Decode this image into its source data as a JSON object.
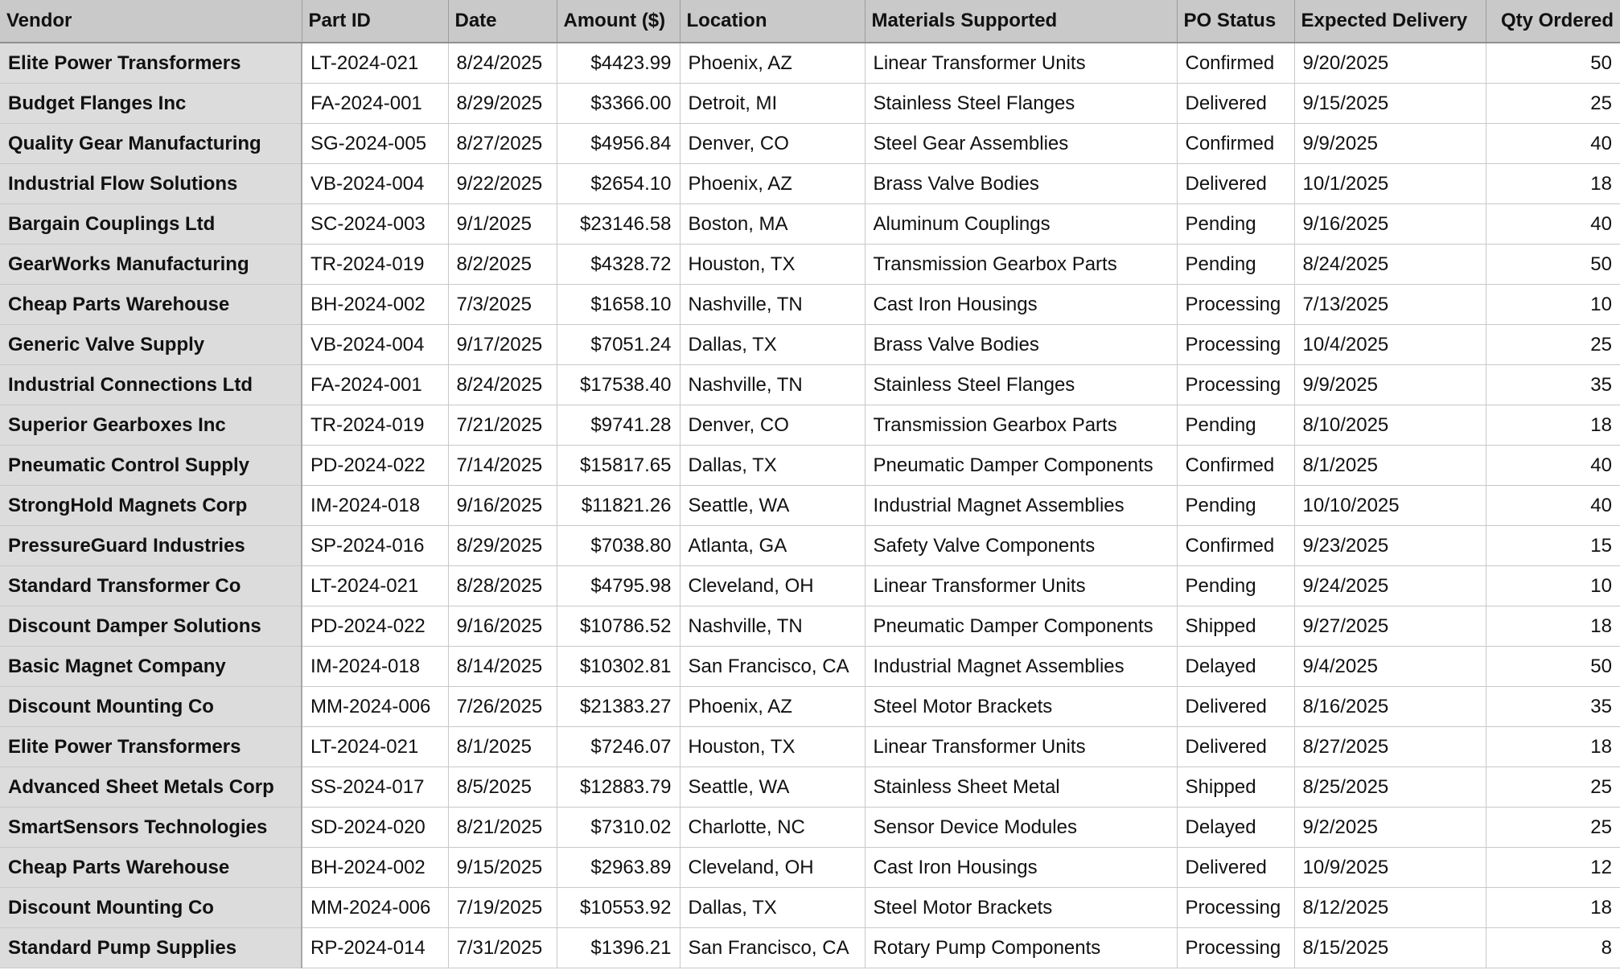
{
  "headers": {
    "vendor": "Vendor",
    "part_id": "Part ID",
    "date": "Date",
    "amount": "Amount ($)",
    "location": "Location",
    "materials": "Materials Supported",
    "po_status": "PO Status",
    "expected_delivery": "Expected Delivery",
    "qty_ordered": "Qty Ordered"
  },
  "rows": [
    {
      "vendor": "Elite Power Transformers",
      "part_id": "LT-2024-021",
      "date": "8/24/2025",
      "amount": "$4423.99",
      "location": "Phoenix, AZ",
      "materials": "Linear Transformer Units",
      "po_status": "Confirmed",
      "expected_delivery": "9/20/2025",
      "qty": "50"
    },
    {
      "vendor": "Budget Flanges Inc",
      "part_id": "FA-2024-001",
      "date": "8/29/2025",
      "amount": "$3366.00",
      "location": "Detroit, MI",
      "materials": "Stainless Steel Flanges",
      "po_status": "Delivered",
      "expected_delivery": "9/15/2025",
      "qty": "25"
    },
    {
      "vendor": "Quality Gear Manufacturing",
      "part_id": "SG-2024-005",
      "date": "8/27/2025",
      "amount": "$4956.84",
      "location": "Denver, CO",
      "materials": "Steel Gear Assemblies",
      "po_status": "Confirmed",
      "expected_delivery": "9/9/2025",
      "qty": "40"
    },
    {
      "vendor": "Industrial Flow Solutions",
      "part_id": "VB-2024-004",
      "date": "9/22/2025",
      "amount": "$2654.10",
      "location": "Phoenix, AZ",
      "materials": "Brass Valve Bodies",
      "po_status": "Delivered",
      "expected_delivery": "10/1/2025",
      "qty": "18"
    },
    {
      "vendor": "Bargain Couplings Ltd",
      "part_id": "SC-2024-003",
      "date": "9/1/2025",
      "amount": "$23146.58",
      "location": "Boston, MA",
      "materials": "Aluminum Couplings",
      "po_status": "Pending",
      "expected_delivery": "9/16/2025",
      "qty": "40"
    },
    {
      "vendor": "GearWorks Manufacturing",
      "part_id": "TR-2024-019",
      "date": "8/2/2025",
      "amount": "$4328.72",
      "location": "Houston, TX",
      "materials": "Transmission Gearbox Parts",
      "po_status": "Pending",
      "expected_delivery": "8/24/2025",
      "qty": "50"
    },
    {
      "vendor": "Cheap Parts Warehouse",
      "part_id": "BH-2024-002",
      "date": "7/3/2025",
      "amount": "$1658.10",
      "location": "Nashville, TN",
      "materials": "Cast Iron Housings",
      "po_status": "Processing",
      "expected_delivery": "7/13/2025",
      "qty": "10"
    },
    {
      "vendor": "Generic Valve Supply",
      "part_id": "VB-2024-004",
      "date": "9/17/2025",
      "amount": "$7051.24",
      "location": "Dallas, TX",
      "materials": "Brass Valve Bodies",
      "po_status": "Processing",
      "expected_delivery": "10/4/2025",
      "qty": "25"
    },
    {
      "vendor": "Industrial Connections Ltd",
      "part_id": "FA-2024-001",
      "date": "8/24/2025",
      "amount": "$17538.40",
      "location": "Nashville, TN",
      "materials": "Stainless Steel Flanges",
      "po_status": "Processing",
      "expected_delivery": "9/9/2025",
      "qty": "35"
    },
    {
      "vendor": "Superior Gearboxes Inc",
      "part_id": "TR-2024-019",
      "date": "7/21/2025",
      "amount": "$9741.28",
      "location": "Denver, CO",
      "materials": "Transmission Gearbox Parts",
      "po_status": "Pending",
      "expected_delivery": "8/10/2025",
      "qty": "18"
    },
    {
      "vendor": "Pneumatic Control Supply",
      "part_id": "PD-2024-022",
      "date": "7/14/2025",
      "amount": "$15817.65",
      "location": "Dallas, TX",
      "materials": "Pneumatic Damper Components",
      "po_status": "Confirmed",
      "expected_delivery": "8/1/2025",
      "qty": "40"
    },
    {
      "vendor": "StrongHold Magnets Corp",
      "part_id": "IM-2024-018",
      "date": "9/16/2025",
      "amount": "$11821.26",
      "location": "Seattle, WA",
      "materials": "Industrial Magnet Assemblies",
      "po_status": "Pending",
      "expected_delivery": "10/10/2025",
      "qty": "40"
    },
    {
      "vendor": "PressureGuard Industries",
      "part_id": "SP-2024-016",
      "date": "8/29/2025",
      "amount": "$7038.80",
      "location": "Atlanta, GA",
      "materials": "Safety Valve Components",
      "po_status": "Confirmed",
      "expected_delivery": "9/23/2025",
      "qty": "15"
    },
    {
      "vendor": "Standard Transformer Co",
      "part_id": "LT-2024-021",
      "date": "8/28/2025",
      "amount": "$4795.98",
      "location": "Cleveland, OH",
      "materials": "Linear Transformer Units",
      "po_status": "Pending",
      "expected_delivery": "9/24/2025",
      "qty": "10"
    },
    {
      "vendor": "Discount Damper Solutions",
      "part_id": "PD-2024-022",
      "date": "9/16/2025",
      "amount": "$10786.52",
      "location": "Nashville, TN",
      "materials": "Pneumatic Damper Components",
      "po_status": "Shipped",
      "expected_delivery": "9/27/2025",
      "qty": "18"
    },
    {
      "vendor": "Basic Magnet Company",
      "part_id": "IM-2024-018",
      "date": "8/14/2025",
      "amount": "$10302.81",
      "location": "San Francisco, CA",
      "materials": "Industrial Magnet Assemblies",
      "po_status": "Delayed",
      "expected_delivery": "9/4/2025",
      "qty": "50"
    },
    {
      "vendor": "Discount Mounting Co",
      "part_id": "MM-2024-006",
      "date": "7/26/2025",
      "amount": "$21383.27",
      "location": "Phoenix, AZ",
      "materials": "Steel Motor Brackets",
      "po_status": "Delivered",
      "expected_delivery": "8/16/2025",
      "qty": "35"
    },
    {
      "vendor": "Elite Power Transformers",
      "part_id": "LT-2024-021",
      "date": "8/1/2025",
      "amount": "$7246.07",
      "location": "Houston, TX",
      "materials": "Linear Transformer Units",
      "po_status": "Delivered",
      "expected_delivery": "8/27/2025",
      "qty": "18"
    },
    {
      "vendor": "Advanced Sheet Metals Corp",
      "part_id": "SS-2024-017",
      "date": "8/5/2025",
      "amount": "$12883.79",
      "location": "Seattle, WA",
      "materials": "Stainless Sheet Metal",
      "po_status": "Shipped",
      "expected_delivery": "8/25/2025",
      "qty": "25"
    },
    {
      "vendor": "SmartSensors Technologies",
      "part_id": "SD-2024-020",
      "date": "8/21/2025",
      "amount": "$7310.02",
      "location": "Charlotte, NC",
      "materials": "Sensor Device Modules",
      "po_status": "Delayed",
      "expected_delivery": "9/2/2025",
      "qty": "25"
    },
    {
      "vendor": "Cheap Parts Warehouse",
      "part_id": "BH-2024-002",
      "date": "9/15/2025",
      "amount": "$2963.89",
      "location": "Cleveland, OH",
      "materials": "Cast Iron Housings",
      "po_status": "Delivered",
      "expected_delivery": "10/9/2025",
      "qty": "12"
    },
    {
      "vendor": "Discount Mounting Co",
      "part_id": "MM-2024-006",
      "date": "7/19/2025",
      "amount": "$10553.92",
      "location": "Dallas, TX",
      "materials": "Steel Motor Brackets",
      "po_status": "Processing",
      "expected_delivery": "8/12/2025",
      "qty": "18"
    },
    {
      "vendor": "Standard Pump Supplies",
      "part_id": "RP-2024-014",
      "date": "7/31/2025",
      "amount": "$1396.21",
      "location": "San Francisco, CA",
      "materials": "Rotary Pump Components",
      "po_status": "Processing",
      "expected_delivery": "8/15/2025",
      "qty": "8"
    }
  ]
}
